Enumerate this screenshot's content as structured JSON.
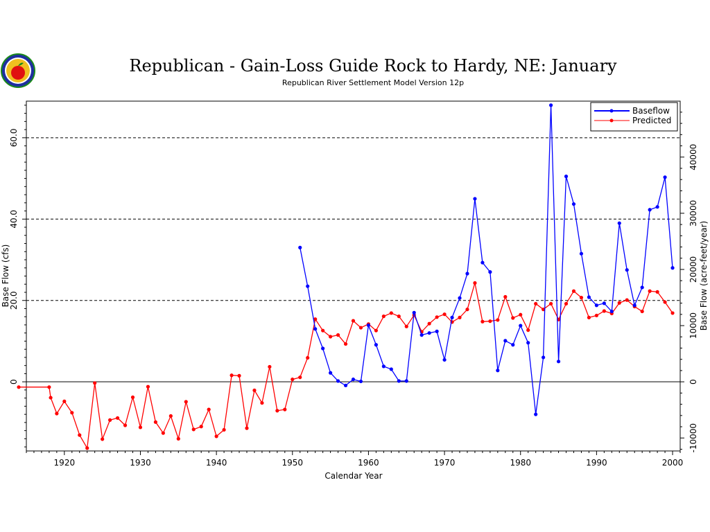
{
  "chart_data": {
    "type": "line",
    "title": "Republican - Gain-Loss Guide Rock to Hardy, NE: January",
    "subtitle": "Republican River Settlement Model Version 12p",
    "xlabel": "Calendar Year",
    "ylabel": "Base Flow (cfs)",
    "y2label": "Base Flow (acre-feet/year)",
    "xlim": [
      1915,
      2001
    ],
    "ylim": [
      -17,
      69
    ],
    "y2lim": [
      -12310,
      49960
    ],
    "x_ticks": [
      1920,
      1930,
      1940,
      1950,
      1960,
      1970,
      1980,
      1990,
      2000
    ],
    "y_ticks": [
      {
        "v": 0,
        "label": "0"
      },
      {
        "v": 20,
        "label": "20.0"
      },
      {
        "v": 40,
        "label": "40.0"
      },
      {
        "v": 60,
        "label": "60.0"
      }
    ],
    "y2_ticks": [
      -10000,
      0,
      10000,
      20000,
      30000,
      40000
    ],
    "grid_dashed_at": [
      20,
      40,
      60
    ],
    "zero_line": true,
    "legend_position": "top-right",
    "series": [
      {
        "name": "Baseflow",
        "color": "#0000ff",
        "x": [
          1951,
          1952,
          1953,
          1954,
          1955,
          1956,
          1957,
          1958,
          1959,
          1960,
          1961,
          1962,
          1963,
          1964,
          1965,
          1966,
          1967,
          1968,
          1969,
          1970,
          1971,
          1972,
          1973,
          1974,
          1975,
          1976,
          1977,
          1978,
          1979,
          1980,
          1981,
          1982,
          1983,
          1984,
          1985,
          1986,
          1987,
          1988,
          1989,
          1990,
          1991,
          1992,
          1993,
          1994,
          1995,
          1996,
          1997,
          1998,
          1999,
          2000
        ],
        "values": [
          33,
          23.5,
          13,
          8.2,
          2.2,
          0.2,
          -0.9,
          0.6,
          0.1,
          13.9,
          9.1,
          3.8,
          3.1,
          0.2,
          0.2,
          17,
          11.5,
          12,
          12.4,
          5.4,
          15.8,
          20.6,
          26.6,
          45,
          29.3,
          27,
          2.8,
          10.1,
          9.1,
          13.8,
          9.6,
          -8,
          6,
          68,
          5,
          50.5,
          43.7,
          31.5,
          20.8,
          18.8,
          19.3,
          17.3,
          39,
          27.5,
          18.8,
          23.2,
          42.3,
          43,
          50.3,
          28
        ]
      },
      {
        "name": "Predicted",
        "color": "#ff0000",
        "x": [
          1914,
          1918,
          1918.2,
          1919,
          1920,
          1921,
          1922,
          1923,
          1924,
          1925,
          1926,
          1927,
          1928,
          1929,
          1930,
          1931,
          1932,
          1933,
          1934,
          1935,
          1936,
          1937,
          1938,
          1939,
          1940,
          1941,
          1942,
          1943,
          1944,
          1945,
          1946,
          1947,
          1948,
          1949,
          1950,
          1951,
          1952,
          1953,
          1954,
          1955,
          1956,
          1957,
          1958,
          1959,
          1960,
          1961,
          1962,
          1963,
          1964,
          1965,
          1966,
          1967,
          1968,
          1969,
          1970,
          1971,
          1972,
          1973,
          1974,
          1975,
          1976,
          1977,
          1978,
          1979,
          1980,
          1981,
          1982,
          1983,
          1984,
          1985,
          1986,
          1987,
          1988,
          1989,
          1990,
          1991,
          1992,
          1993,
          1994,
          1995,
          1996,
          1997,
          1998,
          1999,
          2000
        ],
        "values": [
          -1.3,
          -1.3,
          -3.9,
          -7.8,
          -4.8,
          -7.6,
          -13.1,
          -16.3,
          -0.3,
          -14.1,
          -9.4,
          -8.9,
          -10.7,
          -3.8,
          -11.2,
          -1.2,
          -9.9,
          -12.6,
          -8.4,
          -14,
          -4.9,
          -11.7,
          -11,
          -6.8,
          -13.4,
          -11.8,
          1.6,
          1.5,
          -11.4,
          -2.1,
          -5.2,
          3.7,
          -7.1,
          -6.8,
          0.6,
          1.1,
          5.9,
          15.4,
          12.6,
          11.1,
          11.5,
          9.3,
          15,
          13.3,
          14.2,
          12.6,
          16.1,
          16.9,
          16.1,
          13.6,
          16.4,
          12.3,
          14.3,
          15.9,
          16.6,
          14.7,
          15.8,
          17.8,
          24.3,
          14.8,
          14.9,
          15.2,
          20.9,
          15.7,
          16.5,
          12.7,
          19.2,
          17.8,
          19.2,
          15.3,
          19.2,
          22.3,
          20.7,
          15.8,
          16.3,
          17.4,
          16.8,
          19.4,
          20.1,
          18.5,
          17.3,
          22.3,
          22.1,
          19.6,
          16.9
        ]
      }
    ]
  }
}
